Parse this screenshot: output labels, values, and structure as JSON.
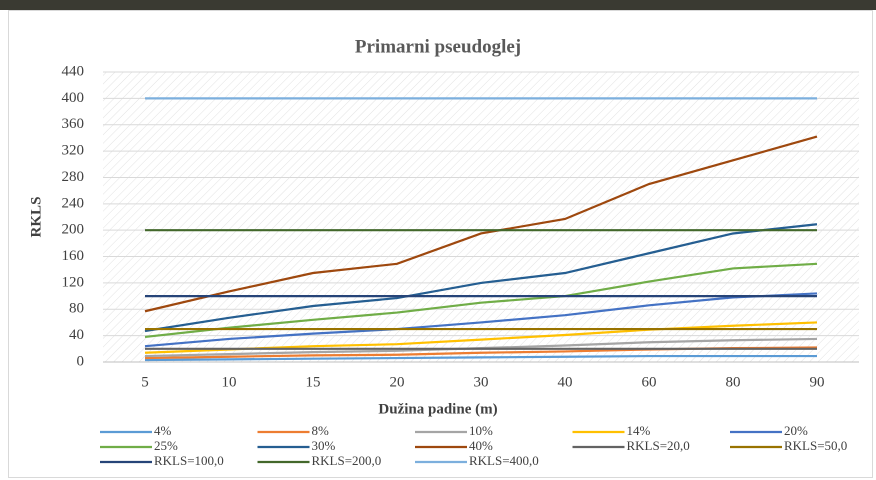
{
  "chart_data": {
    "type": "line",
    "title": "Primarni pseudoglej",
    "x_label": "Dužina padine (m)",
    "y_label": "RKLS",
    "categories": [
      "5",
      "10",
      "15",
      "20",
      "30",
      "40",
      "60",
      "80",
      "90"
    ],
    "ylim": [
      0,
      440
    ],
    "yticks": [
      0,
      40,
      80,
      120,
      160,
      200,
      240,
      280,
      320,
      360,
      400,
      440
    ],
    "grid": true,
    "series": [
      {
        "name": "4%",
        "color": "#5b9bd5",
        "values": [
          3,
          4,
          5,
          6,
          7,
          8,
          9,
          9,
          9
        ]
      },
      {
        "name": "8%",
        "color": "#ed7d31",
        "values": [
          6,
          8,
          10,
          11,
          14,
          16,
          19,
          21,
          22
        ]
      },
      {
        "name": "10%",
        "color": "#a5a5a5",
        "values": [
          9,
          12,
          15,
          17,
          21,
          25,
          30,
          33,
          35
        ]
      },
      {
        "name": "14%",
        "color": "#ffc000",
        "values": [
          14,
          19,
          24,
          27,
          34,
          41,
          49,
          55,
          60
        ]
      },
      {
        "name": "20%",
        "color": "#4472c4",
        "values": [
          24,
          35,
          43,
          50,
          60,
          71,
          86,
          98,
          104
        ]
      },
      {
        "name": "25%",
        "color": "#70ad47",
        "values": [
          38,
          52,
          64,
          75,
          90,
          100,
          122,
          142,
          149
        ]
      },
      {
        "name": "30%",
        "color": "#255e91",
        "values": [
          47,
          67,
          85,
          97,
          120,
          135,
          165,
          195,
          209
        ]
      },
      {
        "name": "40%",
        "color": "#9e480e",
        "values": [
          77,
          107,
          135,
          149,
          195,
          217,
          270,
          306,
          342
        ]
      },
      {
        "name": "RKLS=20,0",
        "color": "#636363",
        "values": [
          20,
          20,
          20,
          20,
          20,
          20,
          20,
          20,
          20
        ]
      },
      {
        "name": "RKLS=50,0",
        "color": "#997300",
        "values": [
          50,
          50,
          50,
          50,
          50,
          50,
          50,
          50,
          50
        ]
      },
      {
        "name": "RKLS=100,0",
        "color": "#264478",
        "values": [
          100,
          100,
          100,
          100,
          100,
          100,
          100,
          100,
          100
        ]
      },
      {
        "name": "RKLS=200,0",
        "color": "#43682b",
        "values": [
          200,
          200,
          200,
          200,
          200,
          200,
          200,
          200,
          200
        ]
      },
      {
        "name": "RKLS=400,0",
        "color": "#7cafdd",
        "values": [
          400,
          400,
          400,
          400,
          400,
          400,
          400,
          400,
          400
        ]
      }
    ]
  }
}
